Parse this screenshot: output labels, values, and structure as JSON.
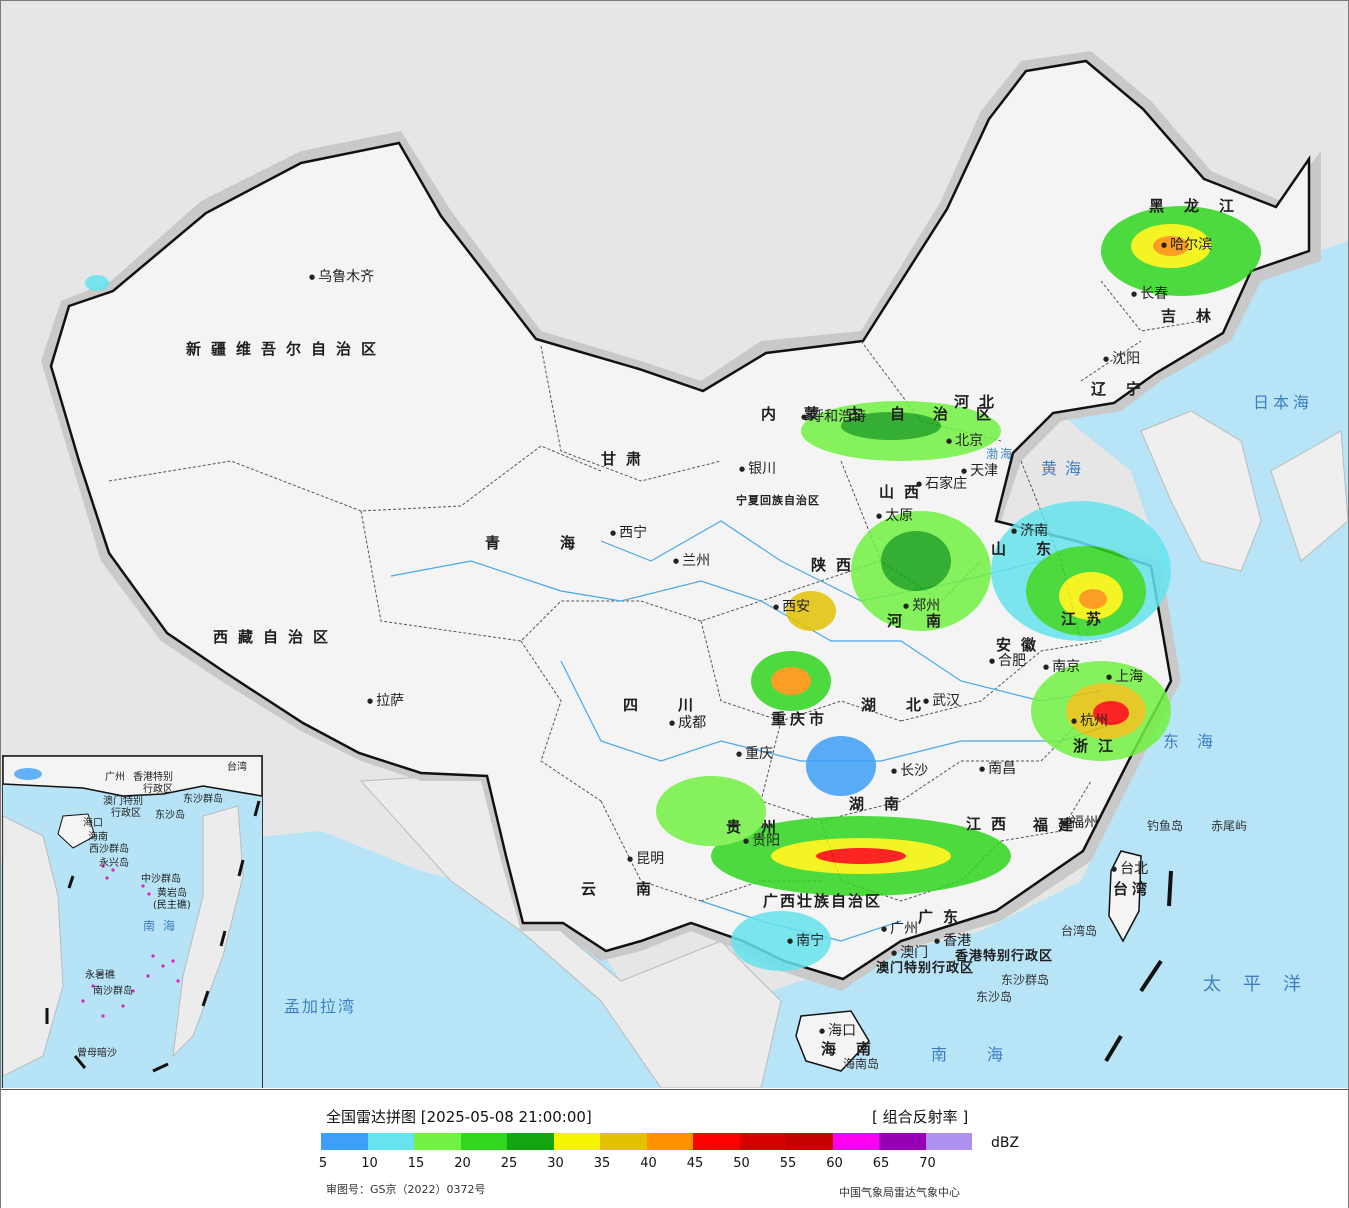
{
  "map": {
    "provinces": [
      {
        "name": "新疆维吾尔自治区",
        "id": "xinjiang"
      },
      {
        "name": "西藏自治区",
        "id": "xizang"
      },
      {
        "name": "青海",
        "id": "qinghai"
      },
      {
        "name": "甘肃",
        "id": "gansu"
      },
      {
        "name": "内蒙古自治区",
        "id": "neimenggu"
      },
      {
        "name": "黑龙江",
        "id": "heilongjiang"
      },
      {
        "name": "吉林",
        "id": "jilin"
      },
      {
        "name": "辽宁",
        "id": "liaoning"
      },
      {
        "name": "河北",
        "id": "hebei"
      },
      {
        "name": "山西",
        "id": "shanxi"
      },
      {
        "name": "陕西",
        "id": "shaanxi"
      },
      {
        "name": "四川",
        "id": "sichuan"
      },
      {
        "name": "云南",
        "id": "yunnan"
      },
      {
        "name": "贵州",
        "id": "guizhou"
      },
      {
        "name": "湖南",
        "id": "hunan"
      },
      {
        "name": "湖北",
        "id": "hubei"
      },
      {
        "name": "河南",
        "id": "henan"
      },
      {
        "name": "山东",
        "id": "shandong"
      },
      {
        "name": "江苏",
        "id": "jiangsu"
      },
      {
        "name": "安徽",
        "id": "anhui"
      },
      {
        "name": "浙江",
        "id": "zhejiang"
      },
      {
        "name": "江西",
        "id": "jiangxi"
      },
      {
        "name": "福建",
        "id": "fujian"
      },
      {
        "name": "广东",
        "id": "guangdong"
      },
      {
        "name": "广西壮族自治区",
        "id": "guangxi"
      },
      {
        "name": "海南",
        "id": "hainan"
      },
      {
        "name": "台湾",
        "id": "taiwan"
      },
      {
        "name": "重庆市",
        "id": "chongqing"
      },
      {
        "name": "宁夏回族自治区",
        "id": "ningxia"
      },
      {
        "name": "香港特别行政区",
        "id": "hongkong"
      },
      {
        "name": "澳门特别行政区",
        "id": "macao"
      }
    ],
    "cities": [
      {
        "name": "乌鲁木齐",
        "id": "urumqi"
      },
      {
        "name": "拉萨",
        "id": "lhasa"
      },
      {
        "name": "西宁",
        "id": "xining"
      },
      {
        "name": "兰州",
        "id": "lanzhou"
      },
      {
        "name": "银川",
        "id": "yinchuan"
      },
      {
        "name": "呼和浩特",
        "id": "hohhot"
      },
      {
        "name": "北京",
        "id": "beijing"
      },
      {
        "name": "天津",
        "id": "tianjin"
      },
      {
        "name": "石家庄",
        "id": "shijiazhuang"
      },
      {
        "name": "太原",
        "id": "taiyuan"
      },
      {
        "name": "西安",
        "id": "xian"
      },
      {
        "name": "郑州",
        "id": "zhengzhou"
      },
      {
        "name": "济南",
        "id": "jinan"
      },
      {
        "name": "合肥",
        "id": "hefei"
      },
      {
        "name": "南京",
        "id": "nanjing"
      },
      {
        "name": "上海",
        "id": "shanghai"
      },
      {
        "name": "杭州",
        "id": "hangzhou"
      },
      {
        "name": "武汉",
        "id": "wuhan"
      },
      {
        "name": "成都",
        "id": "chengdu"
      },
      {
        "name": "重庆",
        "id": "chongqing-city"
      },
      {
        "name": "长沙",
        "id": "changsha"
      },
      {
        "name": "南昌",
        "id": "nanchang"
      },
      {
        "name": "福州",
        "id": "fuzhou"
      },
      {
        "name": "台北",
        "id": "taipei"
      },
      {
        "name": "贵阳",
        "id": "guiyang"
      },
      {
        "name": "昆明",
        "id": "kunming"
      },
      {
        "name": "南宁",
        "id": "nanning"
      },
      {
        "name": "广州",
        "id": "guangzhou"
      },
      {
        "name": "香港",
        "id": "hk-city"
      },
      {
        "name": "澳门",
        "id": "macao-city"
      },
      {
        "name": "海口",
        "id": "haikou"
      },
      {
        "name": "沈阳",
        "id": "shenyang"
      },
      {
        "name": "长春",
        "id": "changchun"
      },
      {
        "name": "哈尔滨",
        "id": "harbin"
      }
    ],
    "seas": [
      {
        "name": "日本海",
        "id": "japan-sea"
      },
      {
        "name": "东海",
        "id": "east-sea"
      },
      {
        "name": "太平洋",
        "id": "pacific"
      },
      {
        "name": "南海",
        "id": "south-sea"
      },
      {
        "name": "孟加拉湾",
        "id": "bengal-bay"
      },
      {
        "name": "黄海",
        "id": "yellow-sea"
      },
      {
        "name": "渤海",
        "id": "bohai"
      }
    ],
    "islands": [
      {
        "name": "钓鱼岛",
        "id": "diaoyu"
      },
      {
        "name": "赤尾屿",
        "id": "chiwei"
      },
      {
        "name": "台湾岛",
        "id": "taiwan-island"
      },
      {
        "name": "东沙群岛",
        "id": "dongsha-group"
      },
      {
        "name": "东沙岛",
        "id": "dongsha"
      },
      {
        "name": "海南岛",
        "id": "hainan-island"
      }
    ],
    "inset": {
      "labels": [
        {
          "name": "广州",
          "id": "i-guangzhou"
        },
        {
          "name": "香港特别",
          "id": "i-hk1"
        },
        {
          "name": "行政区",
          "id": "i-hk2"
        },
        {
          "name": "澳门特别",
          "id": "i-mo1"
        },
        {
          "name": "行政区",
          "id": "i-mo2"
        },
        {
          "name": "东沙群岛",
          "id": "i-dongsha"
        },
        {
          "name": "东沙岛",
          "id": "i-dongsha2"
        },
        {
          "name": "台湾",
          "id": "i-taiwan"
        },
        {
          "name": "海口",
          "id": "i-haikou"
        },
        {
          "name": "海南",
          "id": "i-hainan"
        },
        {
          "name": "西沙群岛",
          "id": "i-xisha"
        },
        {
          "name": "永兴岛",
          "id": "i-yongxing"
        },
        {
          "name": "中沙群岛",
          "id": "i-zhongsha"
        },
        {
          "name": "黄岩岛",
          "id": "i-huangyan"
        },
        {
          "name": "(民主礁)",
          "id": "i-minzhu"
        },
        {
          "name": "南海",
          "id": "i-nanhai"
        },
        {
          "name": "永暑礁",
          "id": "i-yongshu"
        },
        {
          "name": "南沙群岛",
          "id": "i-nansha"
        },
        {
          "name": "曾母暗沙",
          "id": "i-zengmu"
        }
      ]
    }
  },
  "legend": {
    "title": "全国雷达拼图 [2025-05-08 21:00:00]",
    "product": "[ 组合反射率 ]",
    "unit": "dBZ",
    "colors": [
      "#3d9ff5",
      "#66e3ee",
      "#72f243",
      "#31d61f",
      "#14a412",
      "#f5f500",
      "#e3c205",
      "#ff9000",
      "#ff0000",
      "#d70000",
      "#c50000",
      "#ff00f0",
      "#9600b4",
      "#ae90f0"
    ],
    "ticks": [
      "5",
      "10",
      "15",
      "20",
      "25",
      "30",
      "35",
      "40",
      "45",
      "50",
      "55",
      "60",
      "65",
      "70"
    ],
    "approval": "审图号：GS京（2022）0372号",
    "source": "中国气象局雷达气象中心"
  }
}
